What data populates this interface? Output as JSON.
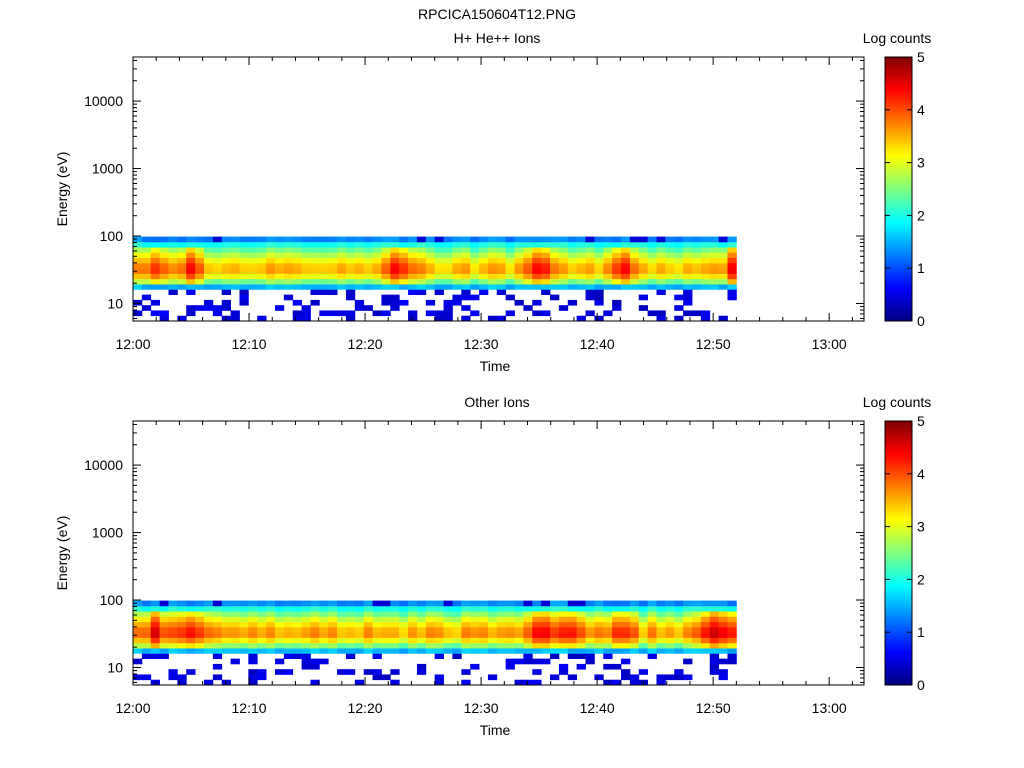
{
  "figure_title": "RPCICA150604T12.PNG",
  "colors": {
    "colormap": [
      "#00007f",
      "#0000ff",
      "#007fff",
      "#00ffff",
      "#7fff7f",
      "#ffff00",
      "#ff7f00",
      "#ff0000",
      "#7f0000"
    ]
  },
  "chart_data": [
    {
      "type": "heatmap",
      "title": "H+ He++ Ions",
      "xlabel": "Time",
      "ylabel": "Energy (eV)",
      "x_ticks": [
        "12:00",
        "12:10",
        "12:20",
        "12:30",
        "12:40",
        "12:50",
        "13:00"
      ],
      "xlim": [
        "12:00",
        "13:03"
      ],
      "y_scale": "log",
      "y_ticks": [
        "10",
        "100",
        "1000",
        "10000"
      ],
      "ylim": [
        5.5,
        45000
      ],
      "data_time_range": [
        "12:00",
        "12:52"
      ],
      "data_energy_range": [
        5.5,
        98
      ],
      "colorbar": {
        "label": "Log counts",
        "ticks": [
          "0",
          "1",
          "2",
          "3",
          "4",
          "5"
        ],
        "range": [
          0,
          5
        ]
      },
      "energy_profile": [
        {
          "energy": 6,
          "log_counts": 0.3
        },
        {
          "energy": 8,
          "log_counts": 0.4
        },
        {
          "energy": 10,
          "log_counts": 0.5
        },
        {
          "energy": 14,
          "log_counts": 0.6
        },
        {
          "energy": 17,
          "log_counts": 1.3
        },
        {
          "energy": 20,
          "log_counts": 2.3
        },
        {
          "energy": 25,
          "log_counts": 3.1
        },
        {
          "energy": 32,
          "log_counts": 3.6
        },
        {
          "energy": 40,
          "log_counts": 3.3
        },
        {
          "energy": 55,
          "log_counts": 2.7
        },
        {
          "energy": 75,
          "log_counts": 2.0
        },
        {
          "energy": 92,
          "log_counts": 1.2
        }
      ],
      "peak_times": [
        "12:02",
        "12:05",
        "12:23",
        "12:35",
        "12:42",
        "12:52"
      ]
    },
    {
      "type": "heatmap",
      "title": "Other Ions",
      "xlabel": "Time",
      "ylabel": "Energy (eV)",
      "x_ticks": [
        "12:00",
        "12:10",
        "12:20",
        "12:30",
        "12:40",
        "12:50",
        "13:00"
      ],
      "xlim": [
        "12:00",
        "13:03"
      ],
      "y_scale": "log",
      "y_ticks": [
        "10",
        "100",
        "1000",
        "10000"
      ],
      "ylim": [
        5.5,
        45000
      ],
      "data_time_range": [
        "12:00",
        "12:52"
      ],
      "data_energy_range": [
        5.5,
        98
      ],
      "colorbar": {
        "label": "Log counts",
        "ticks": [
          "0",
          "1",
          "2",
          "3",
          "4",
          "5"
        ],
        "range": [
          0,
          5
        ]
      },
      "energy_profile": [
        {
          "energy": 6,
          "log_counts": 0.3
        },
        {
          "energy": 8,
          "log_counts": 0.4
        },
        {
          "energy": 10,
          "log_counts": 0.5
        },
        {
          "energy": 14,
          "log_counts": 0.6
        },
        {
          "energy": 17,
          "log_counts": 1.3
        },
        {
          "energy": 20,
          "log_counts": 2.3
        },
        {
          "energy": 25,
          "log_counts": 3.1
        },
        {
          "energy": 32,
          "log_counts": 3.7
        },
        {
          "energy": 40,
          "log_counts": 3.4
        },
        {
          "energy": 55,
          "log_counts": 2.8
        },
        {
          "energy": 75,
          "log_counts": 2.0
        },
        {
          "energy": 92,
          "log_counts": 1.2
        }
      ],
      "peak_times": [
        "12:02",
        "12:05",
        "12:35",
        "12:38",
        "12:42",
        "12:50",
        "12:52"
      ]
    }
  ]
}
